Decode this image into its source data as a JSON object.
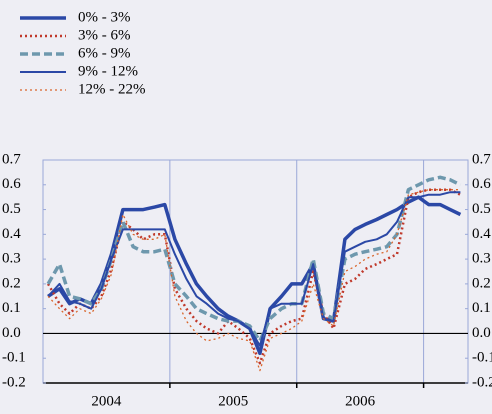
{
  "chart_data": {
    "type": "line",
    "x": [
      2004.04,
      2004.13,
      2004.21,
      2004.29,
      2004.38,
      2004.46,
      2004.54,
      2004.63,
      2004.71,
      2004.79,
      2004.88,
      2004.96,
      2005.04,
      2005.13,
      2005.21,
      2005.29,
      2005.38,
      2005.46,
      2005.54,
      2005.63,
      2005.71,
      2005.79,
      2005.88,
      2005.96,
      2006.04,
      2006.13,
      2006.21,
      2006.29,
      2006.38,
      2006.46,
      2006.54,
      2006.63,
      2006.71,
      2006.79,
      2006.88,
      2006.96,
      2007.04,
      2007.13,
      2007.21,
      2007.29
    ],
    "xlim": [
      2004,
      2007.35
    ],
    "xticks": [
      {
        "value": 2004.5,
        "label": "2004"
      },
      {
        "value": 2005.5,
        "label": "2005"
      },
      {
        "value": 2006.5,
        "label": "2006"
      }
    ],
    "xgrid": [
      2005,
      2006,
      2007
    ],
    "ylim": [
      -0.2,
      0.7
    ],
    "yticks": [
      -0.2,
      -0.1,
      {
        "value": 0,
        "label": "0.0"
      },
      0.1,
      0.2,
      0.3,
      0.4,
      0.5,
      0.6,
      0.7
    ],
    "y2lim": [
      -0.2,
      0.7
    ],
    "y2ticks": [
      -0.2,
      -0.1,
      {
        "value": 0,
        "label": "0.0"
      },
      0.1,
      0.2,
      0.3,
      0.4,
      0.5,
      0.6,
      0.7
    ],
    "zero_line": true,
    "series": [
      {
        "name": "0% - 3%",
        "color": "#2b48a6",
        "style": "solid",
        "width": 3.5,
        "values": [
          0.15,
          0.18,
          0.12,
          0.14,
          0.12,
          0.2,
          0.32,
          0.5,
          0.5,
          0.5,
          0.51,
          0.52,
          0.38,
          0.28,
          0.2,
          0.15,
          0.1,
          0.07,
          0.05,
          0.02,
          -0.08,
          0.1,
          0.15,
          0.2,
          0.2,
          0.28,
          0.06,
          0.05,
          0.38,
          0.42,
          0.44,
          0.46,
          0.48,
          0.5,
          0.53,
          0.55,
          0.52,
          0.52,
          0.5,
          0.48
        ]
      },
      {
        "name": "3% - 6%",
        "color": "#c0392b",
        "style": "dotted",
        "width": 2.5,
        "values": [
          0.2,
          0.12,
          0.08,
          0.12,
          0.1,
          0.15,
          0.26,
          0.45,
          0.42,
          0.38,
          0.4,
          0.4,
          0.18,
          0.1,
          0.05,
          0.02,
          0.0,
          0.05,
          0.02,
          -0.02,
          -0.12,
          0.0,
          0.03,
          0.05,
          0.06,
          0.25,
          0.08,
          0.02,
          0.2,
          0.22,
          0.26,
          0.28,
          0.3,
          0.32,
          0.55,
          0.57,
          0.58,
          0.58,
          0.58,
          0.56
        ]
      },
      {
        "name": "6% - 9%",
        "color": "#6e98ad",
        "style": "dashed",
        "width": 3.5,
        "values": [
          0.2,
          0.28,
          0.15,
          0.14,
          0.12,
          0.18,
          0.3,
          0.45,
          0.35,
          0.33,
          0.33,
          0.34,
          0.2,
          0.15,
          0.1,
          0.08,
          0.06,
          0.05,
          0.05,
          0.03,
          -0.03,
          0.06,
          0.1,
          0.12,
          0.12,
          0.3,
          0.08,
          0.06,
          0.3,
          0.32,
          0.33,
          0.34,
          0.35,
          0.4,
          0.58,
          0.6,
          0.62,
          0.63,
          0.62,
          0.6
        ]
      },
      {
        "name": "9% - 12%",
        "color": "#2b48a6",
        "style": "solid",
        "width": 2,
        "values": [
          0.15,
          0.2,
          0.13,
          0.12,
          0.1,
          0.18,
          0.3,
          0.42,
          0.42,
          0.42,
          0.42,
          0.42,
          0.32,
          0.22,
          0.15,
          0.12,
          0.08,
          0.06,
          0.05,
          0.02,
          -0.05,
          0.1,
          0.12,
          0.12,
          0.12,
          0.28,
          0.06,
          0.05,
          0.33,
          0.35,
          0.37,
          0.38,
          0.4,
          0.45,
          0.55,
          0.55,
          0.56,
          0.56,
          0.57,
          0.57
        ]
      },
      {
        "name": "12% - 22%",
        "color": "#d9662b",
        "style": "dotted",
        "width": 1.3,
        "values": [
          0.15,
          0.1,
          0.06,
          0.1,
          0.08,
          0.14,
          0.24,
          0.48,
          0.4,
          0.38,
          0.38,
          0.4,
          0.15,
          0.05,
          0.0,
          -0.03,
          -0.02,
          0.0,
          -0.02,
          -0.03,
          -0.15,
          -0.02,
          0.0,
          0.02,
          0.05,
          0.2,
          0.06,
          0.03,
          0.25,
          0.27,
          0.3,
          0.32,
          0.33,
          0.4,
          0.56,
          0.57,
          0.58,
          0.58,
          0.58,
          0.58
        ]
      }
    ]
  }
}
